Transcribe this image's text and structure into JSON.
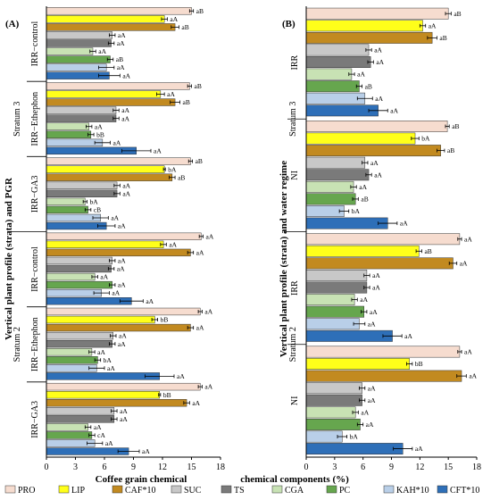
{
  "chart_data": [
    {
      "panel": "(A)",
      "type": "bar",
      "orientation": "horizontal",
      "ylabel": "Vertical plant profile (strata) and PGR",
      "xlabel_part": "Coffee grain chemical",
      "x_ticks": [
        "0",
        "3",
        "6",
        "9",
        "12",
        "15",
        "18"
      ],
      "xlim": [
        0,
        18
      ],
      "strata": [
        {
          "name": "Stratum 3",
          "groups": [
            {
              "name": "IRR−control",
              "values": [
                15.0,
                12.2,
                13.3,
                6.8,
                6.7,
                4.8,
                6.6,
                6.2,
                6.5
              ],
              "errors": [
                0.2,
                0.3,
                0.4,
                0.3,
                0.3,
                0.3,
                0.3,
                0.8,
                1.1
              ],
              "letters": [
                "aB",
                "aA",
                "aB",
                "aA",
                "aA",
                "aA",
                "aB",
                "aA",
                "aA"
              ]
            },
            {
              "name": "IRR−Ethephon",
              "values": [
                14.8,
                11.8,
                13.3,
                7.2,
                7.2,
                4.4,
                4.6,
                5.8,
                9.3
              ],
              "errors": [
                0.2,
                0.4,
                0.5,
                0.3,
                0.3,
                0.3,
                0.3,
                0.8,
                1.5
              ],
              "letters": [
                "aB",
                "aA",
                "aB",
                "aA",
                "aA",
                "aA",
                "bB",
                "aA",
                "aA"
              ]
            },
            {
              "name": "IRR−GA3",
              "values": [
                14.9,
                12.2,
                13.0,
                7.3,
                7.3,
                4.0,
                4.3,
                5.6,
                6.2
              ],
              "errors": [
                0.2,
                0.1,
                0.3,
                0.3,
                0.3,
                0.2,
                0.3,
                0.8,
                0.9
              ],
              "letters": [
                "aB",
                "bA",
                "aB",
                "aA",
                "aA",
                "bA",
                "cB",
                "aA",
                "aA"
              ]
            }
          ]
        },
        {
          "name": "Stratum 2",
          "groups": [
            {
              "name": "IRR−control",
              "values": [
                16.0,
                12.1,
                14.9,
                6.8,
                6.7,
                5.0,
                6.8,
                5.7,
                8.8
              ],
              "errors": [
                0.2,
                0.3,
                0.3,
                0.3,
                0.3,
                0.3,
                0.3,
                0.8,
                1.2
              ],
              "letters": [
                "aA",
                "aA",
                "aA",
                "aA",
                "aA",
                "aA",
                "aA",
                "aA",
                "aA"
              ]
            },
            {
              "name": "IRR−Ethephon",
              "values": [
                15.9,
                11.2,
                14.9,
                6.9,
                6.8,
                4.7,
                5.3,
                5.2,
                11.7
              ],
              "errors": [
                0.2,
                0.3,
                0.3,
                0.3,
                0.3,
                0.3,
                0.3,
                0.8,
                1.5
              ],
              "letters": [
                "aA",
                "bB",
                "aA",
                "aA",
                "aA",
                "aA",
                "bA",
                "aA",
                "aA"
              ]
            },
            {
              "name": "IRR−GA3",
              "values": [
                15.9,
                11.7,
                14.5,
                7.0,
                7.0,
                4.3,
                4.7,
                5.0,
                8.5
              ],
              "errors": [
                0.2,
                0.1,
                0.3,
                0.3,
                0.3,
                0.3,
                0.3,
                0.8,
                1.1
              ],
              "letters": [
                "aA",
                "bB",
                "aA",
                "aA",
                "aA",
                "aA",
                "cA",
                "aA",
                "aA"
              ]
            }
          ]
        }
      ]
    },
    {
      "panel": "(B)",
      "type": "bar",
      "orientation": "horizontal",
      "ylabel": "Vertical plant profile (strata) and water regime",
      "xlabel_part": "chemical components (%)",
      "x_ticks": [
        "0",
        "3",
        "6",
        "9",
        "12",
        "15",
        "18"
      ],
      "xlim": [
        0,
        18
      ],
      "strata": [
        {
          "name": "Stratum 3",
          "groups": [
            {
              "name": "IRR",
              "values": [
                15.0,
                12.3,
                13.3,
                6.6,
                6.8,
                4.8,
                5.6,
                6.2,
                7.6
              ],
              "errors": [
                0.3,
                0.3,
                0.5,
                0.3,
                0.3,
                0.3,
                0.3,
                0.8,
                1.0
              ],
              "letters": [
                "aB",
                "aA",
                "aB",
                "aA",
                "aA",
                "aA",
                "aB",
                "aA",
                "aA"
              ]
            },
            {
              "name": "NI",
              "values": [
                14.9,
                11.5,
                14.2,
                6.2,
                6.6,
                5.0,
                5.2,
                4.0,
                8.6
              ],
              "errors": [
                0.2,
                0.4,
                0.4,
                0.3,
                0.3,
                0.3,
                0.3,
                0.5,
                1.0
              ],
              "letters": [
                "aB",
                "bA",
                "aB",
                "aA",
                "aA",
                "aA",
                "aB",
                "bA",
                "aA"
              ]
            }
          ]
        },
        {
          "name": "Stratum 2",
          "groups": [
            {
              "name": "IRR",
              "values": [
                16.2,
                11.9,
                15.5,
                6.4,
                6.4,
                5.1,
                6.1,
                5.6,
                9.1
              ],
              "errors": [
                0.2,
                0.3,
                0.4,
                0.3,
                0.3,
                0.3,
                0.3,
                0.6,
                1.0
              ],
              "letters": [
                "aA",
                "aB",
                "aA",
                "aA",
                "aA",
                "aA",
                "aA",
                "aA",
                "aA"
              ]
            },
            {
              "name": "NI",
              "values": [
                16.2,
                10.9,
                16.4,
                5.9,
                5.9,
                5.2,
                5.7,
                3.8,
                10.2
              ],
              "errors": [
                0.2,
                0.3,
                0.5,
                0.3,
                0.3,
                0.3,
                0.3,
                0.5,
                1.0
              ],
              "letters": [
                "aA",
                "bB",
                "aA",
                "aA",
                "aA",
                "aA",
                "aA",
                "bA",
                "aA"
              ]
            }
          ]
        }
      ]
    }
  ],
  "series": [
    {
      "name": "PRO",
      "color": "#f6dccf"
    },
    {
      "name": "LIP",
      "color": "#ffff1a"
    },
    {
      "name": "CAF*10",
      "color": "#c28a20"
    },
    {
      "name": "SUC",
      "color": "#c8c8c8"
    },
    {
      "name": "TS",
      "color": "#7a7a7a"
    },
    {
      "name": "CGA",
      "color": "#c8e2b4"
    },
    {
      "name": "PC",
      "color": "#66a64e"
    },
    {
      "name": "KAH*10",
      "color": "#b9cfe8"
    },
    {
      "name": "CFT*10",
      "color": "#2e6fb8"
    }
  ]
}
